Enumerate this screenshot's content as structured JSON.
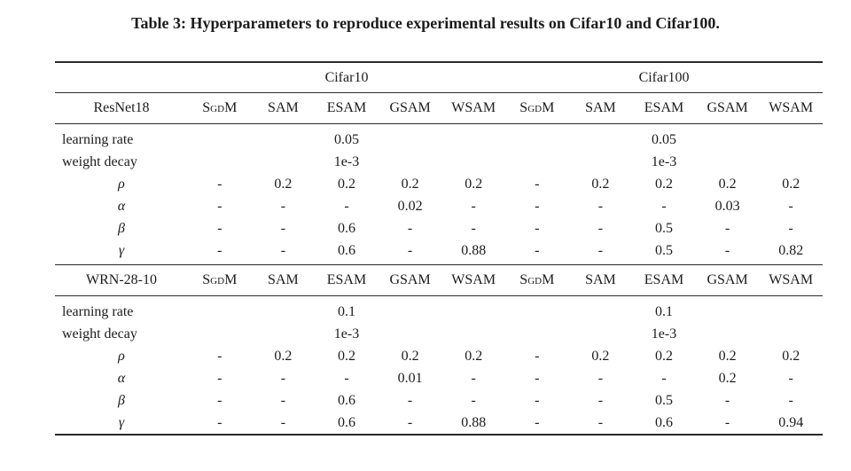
{
  "page": {
    "background_color": "#ffffff",
    "text_color": "#1c1c1c",
    "rule_color": "#2b2b2b"
  },
  "caption": "Table 3: Hyperparameters to reproduce experimental results on Cifar10 and Cifar100.",
  "table": {
    "dataset_groups": [
      {
        "label": "Cifar10"
      },
      {
        "label": "Cifar100"
      }
    ],
    "method_headers": [
      "SgdM",
      "SAM",
      "ESAM",
      "GSAM",
      "WSAM",
      "SgdM",
      "SAM",
      "ESAM",
      "GSAM",
      "WSAM"
    ],
    "sections": [
      {
        "model": "ResNet18",
        "shared_rows": [
          {
            "label": "learning rate",
            "cifar10": "0.05",
            "cifar100": "0.05"
          },
          {
            "label": "weight decay",
            "cifar10": "1e-3",
            "cifar100": "1e-3"
          }
        ],
        "param_rows": [
          {
            "label": "ρ",
            "values": [
              "-",
              "0.2",
              "0.2",
              "0.2",
              "0.2",
              "-",
              "0.2",
              "0.2",
              "0.2",
              "0.2"
            ]
          },
          {
            "label": "α",
            "values": [
              "-",
              "-",
              "-",
              "0.02",
              "-",
              "-",
              "-",
              "-",
              "0.03",
              "-"
            ]
          },
          {
            "label": "β",
            "values": [
              "-",
              "-",
              "0.6",
              "-",
              "-",
              "-",
              "-",
              "0.5",
              "-",
              "-"
            ]
          },
          {
            "label": "γ",
            "values": [
              "-",
              "-",
              "0.6",
              "-",
              "0.88",
              "-",
              "-",
              "0.5",
              "-",
              "0.82"
            ]
          }
        ]
      },
      {
        "model": "WRN-28-10",
        "shared_rows": [
          {
            "label": "learning rate",
            "cifar10": "0.1",
            "cifar100": "0.1"
          },
          {
            "label": "weight decay",
            "cifar10": "1e-3",
            "cifar100": "1e-3"
          }
        ],
        "param_rows": [
          {
            "label": "ρ",
            "values": [
              "-",
              "0.2",
              "0.2",
              "0.2",
              "0.2",
              "-",
              "0.2",
              "0.2",
              "0.2",
              "0.2"
            ]
          },
          {
            "label": "α",
            "values": [
              "-",
              "-",
              "-",
              "0.01",
              "-",
              "-",
              "-",
              "-",
              "0.2",
              "-"
            ]
          },
          {
            "label": "β",
            "values": [
              "-",
              "-",
              "0.6",
              "-",
              "-",
              "-",
              "-",
              "0.5",
              "-",
              "-"
            ]
          },
          {
            "label": "γ",
            "values": [
              "-",
              "-",
              "0.6",
              "-",
              "0.88",
              "-",
              "-",
              "0.6",
              "-",
              "0.94"
            ]
          }
        ]
      }
    ]
  }
}
